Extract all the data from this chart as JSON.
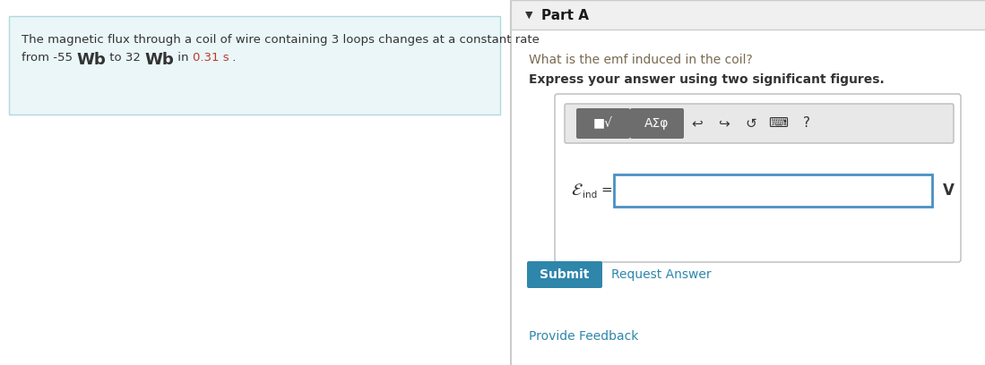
{
  "bg_color": "#ffffff",
  "left_panel_bg": "#eaf6f8",
  "left_panel_border": "#b0d8e0",
  "left_text_line1": "The magnetic flux through a coil of wire containing 3 loops changes at a constant rate",
  "right_panel_bg": "#f5f5f5",
  "right_header_text": "Part A",
  "right_header_triangle": "▼",
  "divider_color": "#cccccc",
  "question_text": "What is the emf induced in the coil?",
  "question_color": "#7a6a50",
  "bold_text": "Express your answer using two significant figures.",
  "bold_color": "#333333",
  "toolbar_bg": "#e8e8e8",
  "btn1_color": "#6d6d6d",
  "input_border": "#4a90c4",
  "input_bg": "#ffffff",
  "unit_text": "V",
  "submit_bg": "#2e86ab",
  "submit_text": "Submit",
  "submit_text_color": "#ffffff",
  "request_text": "Request Answer",
  "request_color": "#2e86ab",
  "feedback_text": "Provide Feedback",
  "feedback_color": "#2e86ab",
  "outer_border_color": "#cccccc",
  "right_content_bg": "#ffffff",
  "time_color": "#c0392b"
}
